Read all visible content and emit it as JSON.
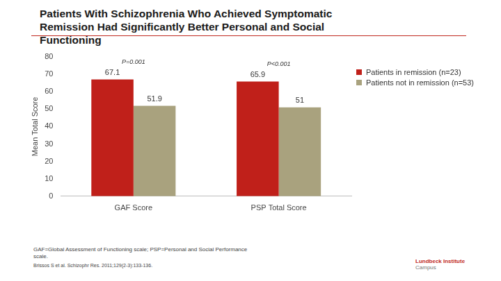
{
  "chart_data": {
    "type": "bar",
    "title": "Patients With Schizophrenia Who Achieved Symptomatic Remission Had Significantly Better Personal and Social Functioning",
    "y_label": "Mean Total Score",
    "categories": [
      "GAF Score",
      "PSP Total Score"
    ],
    "series": [
      {
        "name": "Patients in remission (n=23)",
        "color": "#c0201a",
        "values": [
          67.1,
          65.9
        ]
      },
      {
        "name": "Patients not in remission (n=53)",
        "color": "#a9a27e",
        "values": [
          51.9,
          51
        ]
      }
    ],
    "ylim": [
      0,
      80
    ],
    "yticks": [
      0,
      10,
      20,
      30,
      40,
      50,
      60,
      70,
      80
    ],
    "grid": false,
    "legend": "right",
    "data_labels": true,
    "annotations": [
      {
        "category": "GAF Score",
        "text": "P=0.001"
      },
      {
        "category": "PSP Total Score",
        "text": "P<0.001"
      }
    ],
    "footnotes": [
      "GAF=Global Assessment of Functioning scale; PSP=Personal and Social Performance scale.",
      "Brissos S et al. Schizophr Res. 2011;129(2-3):133-136."
    ],
    "logo": [
      "Lundbeck Institute",
      "Campus"
    ]
  }
}
